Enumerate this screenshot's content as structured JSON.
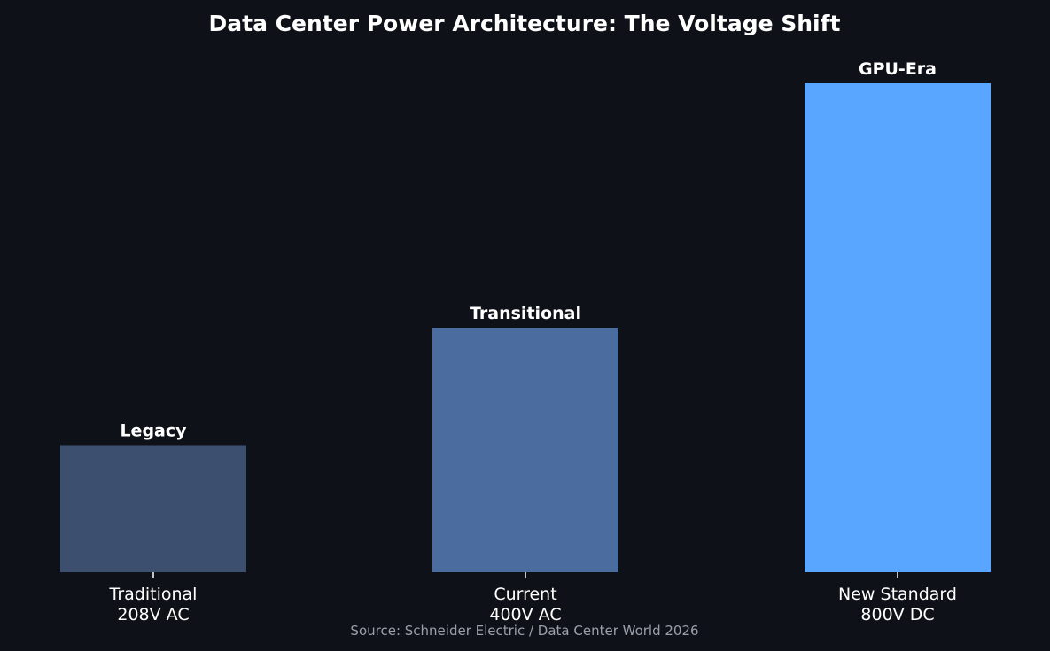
{
  "chart_data": {
    "type": "bar",
    "title": "Data Center Power Architecture: The Voltage Shift",
    "categories": [
      [
        "Traditional",
        "208V AC"
      ],
      [
        "Current",
        "400V AC"
      ],
      [
        "New Standard",
        "800V DC"
      ]
    ],
    "values": [
      208,
      400,
      800
    ],
    "bar_labels": [
      "Legacy",
      "Transitional",
      "GPU-Era"
    ],
    "bar_colors": [
      "#3d4f6e",
      "#4a6c9e",
      "#58a6ff"
    ],
    "ylim": [
      0,
      800
    ],
    "y_axis_visible": false,
    "grid": false,
    "legend": "none",
    "source": "Source: Schneider Electric / Data Center World 2026"
  },
  "colors": {
    "background": "#0e1117",
    "text": "#ffffff",
    "muted_text": "#9aa0aa"
  }
}
